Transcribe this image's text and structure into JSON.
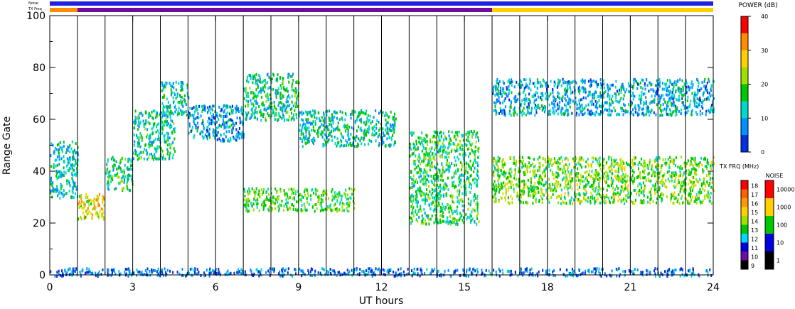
{
  "chart_data": {
    "type": "heatmap",
    "xlabel": "UT hours",
    "ylabel": "Range Gate",
    "xlim": [
      0,
      24
    ],
    "ylim": [
      0,
      100
    ],
    "xticks": [
      "0",
      "3",
      "6",
      "9",
      "12",
      "15",
      "18",
      "21",
      "24"
    ],
    "xtick_values": [
      0,
      3,
      6,
      9,
      12,
      15,
      18,
      21,
      24
    ],
    "yticks": [
      "0",
      "20",
      "40",
      "60",
      "80",
      "100"
    ],
    "ytick_values": [
      0,
      20,
      40,
      60,
      80,
      100
    ],
    "vertical_lines_hours": [
      1,
      2,
      3,
      4,
      5,
      6,
      7,
      8,
      9,
      10,
      11,
      12,
      13,
      14,
      15,
      16,
      17,
      18,
      19,
      20,
      21,
      22,
      23
    ],
    "top_strips": {
      "noise_label": "Noise",
      "txfreq_label": "TX Freq",
      "noise_color": "#2020e0",
      "txfreq_segments": [
        {
          "from": 0,
          "to": 1,
          "color": "#ff8c00"
        },
        {
          "from": 1,
          "to": 16,
          "color": "#6a0da0"
        },
        {
          "from": 16,
          "to": 24,
          "color": "#ffd000"
        }
      ]
    },
    "power_colorbar": {
      "title": "POWER (dB)",
      "ticks": [
        "40",
        "30",
        "20",
        "10",
        "0"
      ],
      "range": [
        0,
        40
      ],
      "colors": [
        "#ff0000",
        "#ff8c00",
        "#ffd000",
        "#a0e000",
        "#00c800",
        "#00d8c8",
        "#0090ff",
        "#0030e0"
      ]
    },
    "txfreq_colorbar": {
      "title": "TX FRQ (MHz)",
      "labels": [
        "18",
        "17",
        "16",
        "15",
        "14",
        "13",
        "12",
        "11",
        "10",
        "9"
      ],
      "colors": [
        "#ff0000",
        "#ff6000",
        "#ff9800",
        "#ffd000",
        "#a0e000",
        "#00c800",
        "#00d8ff",
        "#0000e0",
        "#6a0da0",
        "#000000"
      ]
    },
    "noise_colorbar": {
      "title": "NOISE",
      "labels": [
        "10000",
        "1000",
        "100",
        "10",
        "1"
      ],
      "colors": [
        "#ff0000",
        "#ffd000",
        "#00c800",
        "#0000e0",
        "#000000"
      ]
    },
    "echo_bands": [
      {
        "x0": 0.0,
        "x1": 1.0,
        "y0": 30,
        "y1": 52,
        "level": 12
      },
      {
        "x0": 1.0,
        "x1": 2.0,
        "y0": 22,
        "y1": 32,
        "level": 26
      },
      {
        "x0": 2.0,
        "x1": 3.0,
        "y0": 33,
        "y1": 46,
        "level": 15
      },
      {
        "x0": 3.0,
        "x1": 4.5,
        "y0": 45,
        "y1": 64,
        "level": 14
      },
      {
        "x0": 4.0,
        "x1": 5.0,
        "y0": 62,
        "y1": 75,
        "level": 12
      },
      {
        "x0": 5.0,
        "x1": 7.0,
        "y0": 52,
        "y1": 66,
        "level": 9
      },
      {
        "x0": 7.0,
        "x1": 9.0,
        "y0": 60,
        "y1": 78,
        "level": 14
      },
      {
        "x0": 7.0,
        "x1": 11.0,
        "y0": 25,
        "y1": 34,
        "level": 18
      },
      {
        "x0": 9.0,
        "x1": 12.5,
        "y0": 50,
        "y1": 64,
        "level": 13
      },
      {
        "x0": 13.0,
        "x1": 15.5,
        "y0": 20,
        "y1": 56,
        "level": 16
      },
      {
        "x0": 16.0,
        "x1": 24.0,
        "y0": 28,
        "y1": 46,
        "level": 20
      },
      {
        "x0": 16.0,
        "x1": 24.0,
        "y0": 62,
        "y1": 76,
        "level": 10
      },
      {
        "x0": 0.0,
        "x1": 24.0,
        "y0": 0,
        "y1": 3,
        "level": 6
      }
    ]
  }
}
